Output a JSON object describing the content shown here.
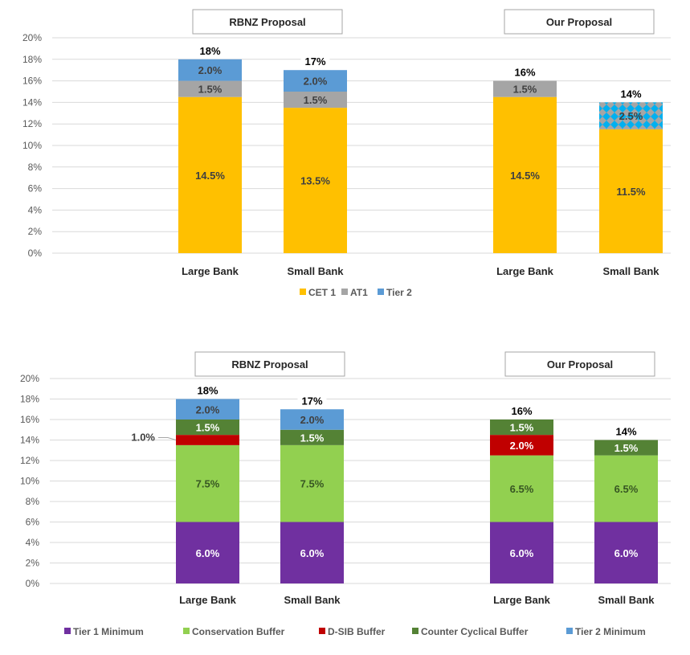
{
  "chart_data": [
    {
      "type": "bar",
      "stacked": true,
      "ylim": [
        0,
        20
      ],
      "yticks": [
        "0%",
        "2%",
        "4%",
        "6%",
        "8%",
        "10%",
        "12%",
        "14%",
        "16%",
        "18%",
        "20%"
      ],
      "grid": true,
      "legend_position": "bottom",
      "groups": [
        {
          "title": "RBNZ Proposal",
          "categories": [
            "Large Bank",
            "Small Bank"
          ]
        },
        {
          "title": "Our Proposal",
          "categories": [
            "Large Bank",
            "Small Bank"
          ]
        }
      ],
      "series": [
        {
          "name": "CET 1",
          "color": "#FFC000",
          "label_color": "#404040",
          "values": [
            14.5,
            13.5,
            14.5,
            11.5
          ],
          "labels": [
            "14.5%",
            "13.5%",
            "14.5%",
            "11.5%"
          ]
        },
        {
          "name": "AT1",
          "color": "#A5A5A5",
          "label_color": "#404040",
          "values": [
            1.5,
            1.5,
            1.5,
            0
          ],
          "labels": [
            "1.5%",
            "1.5%",
            "1.5%",
            ""
          ]
        },
        {
          "name": "Tier 2",
          "color": "#5B9BD5",
          "label_color": "#404040",
          "values": [
            2.0,
            2.0,
            0,
            0
          ],
          "labels": [
            "2.0%",
            "2.0%",
            "",
            ""
          ]
        },
        {
          "name": "AT1 / Tier 2 (combined, patterned)",
          "color": "#A5A5A5",
          "pattern_color": "#00B0F0",
          "label_color": "#404040",
          "values": [
            0,
            0,
            0,
            2.5
          ],
          "labels": [
            "",
            "",
            "",
            "2.5%"
          ],
          "in_legend": false
        }
      ],
      "totals": [
        "18%",
        "17%",
        "16%",
        "14%"
      ],
      "legend": [
        "CET 1",
        "AT1",
        "Tier 2"
      ]
    },
    {
      "type": "bar",
      "stacked": true,
      "ylim": [
        0,
        20
      ],
      "yticks": [
        "0%",
        "2%",
        "4%",
        "6%",
        "8%",
        "10%",
        "12%",
        "14%",
        "16%",
        "18%",
        "20%"
      ],
      "grid": true,
      "legend_position": "bottom",
      "groups": [
        {
          "title": "RBNZ Proposal",
          "categories": [
            "Large Bank",
            "Small Bank"
          ]
        },
        {
          "title": "Our Proposal",
          "categories": [
            "Large Bank",
            "Small Bank"
          ]
        }
      ],
      "series": [
        {
          "name": "Tier 1 Minimum",
          "color": "#7030A0",
          "label_color": "#FFFFFF",
          "values": [
            6.0,
            6.0,
            6.0,
            6.0
          ],
          "labels": [
            "6.0%",
            "6.0%",
            "6.0%",
            "6.0%"
          ]
        },
        {
          "name": "Conservation Buffer",
          "color": "#92D050",
          "label_color": "#375623",
          "values": [
            7.5,
            7.5,
            6.5,
            6.5
          ],
          "labels": [
            "7.5%",
            "7.5%",
            "6.5%",
            "6.5%"
          ]
        },
        {
          "name": "D-SIB Buffer",
          "color": "#C00000",
          "label_color": "#FFFFFF",
          "values": [
            1.0,
            0,
            2.0,
            0
          ],
          "labels": [
            "",
            "",
            "2.0%",
            ""
          ]
        },
        {
          "name": "Counter Cyclical Buffer",
          "color": "#548235",
          "label_color": "#FFFFFF",
          "values": [
            1.5,
            1.5,
            1.5,
            1.5
          ],
          "labels": [
            "1.5%",
            "1.5%",
            "1.5%",
            "1.5%"
          ]
        },
        {
          "name": "Tier 2 Minimum",
          "color": "#5B9BD5",
          "label_color": "#404040",
          "values": [
            2.0,
            2.0,
            0,
            0
          ],
          "labels": [
            "2.0%",
            "2.0%",
            "",
            ""
          ]
        }
      ],
      "annotations": [
        {
          "text": "1.0%",
          "series": "D-SIB Buffer",
          "bar": 0,
          "callout": "left"
        }
      ],
      "totals": [
        "18%",
        "17%",
        "16%",
        "14%"
      ],
      "legend": [
        "Tier 1 Minimum",
        "Conservation Buffer",
        "D-SIB Buffer",
        "Counter Cyclical Buffer",
        "Tier 2 Minimum"
      ]
    }
  ]
}
